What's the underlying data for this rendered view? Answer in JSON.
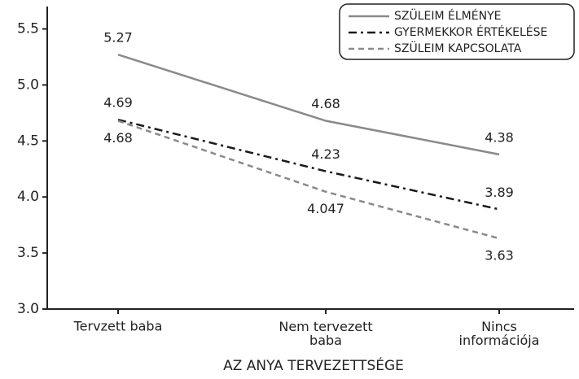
{
  "chart_data": {
    "type": "line",
    "x_label": "AZ ANYA TERVEZETTSÉGE",
    "categories": [
      "Tervzett baba",
      "Nem tervezett baba",
      "Nincs információja"
    ],
    "series": [
      {
        "name": "SZÜLEIM ÉLMÉNYE",
        "color": "#8a8a8a",
        "style": "solid",
        "values": [
          5.27,
          4.68,
          4.38
        ]
      },
      {
        "name": "GYERMEKKOR ÉRTÉKELÉSE",
        "color": "#1a1a1a",
        "style": "dashdot",
        "values": [
          4.69,
          4.23,
          3.89
        ]
      },
      {
        "name": "SZÜLEIM KAPCSOLATA",
        "color": "#8a8a8a",
        "style": "dashed",
        "values": [
          4.68,
          4.047,
          3.63
        ]
      }
    ],
    "ylim": [
      3.0,
      5.7
    ],
    "yticks": [
      {
        "value": 3.0,
        "label": "3.0"
      },
      3.5,
      {
        "value": 4.0,
        "label": "4.0"
      },
      4.5,
      {
        "value": 5.0,
        "label": "5.0"
      },
      5.5
    ],
    "legend": "top-right"
  }
}
